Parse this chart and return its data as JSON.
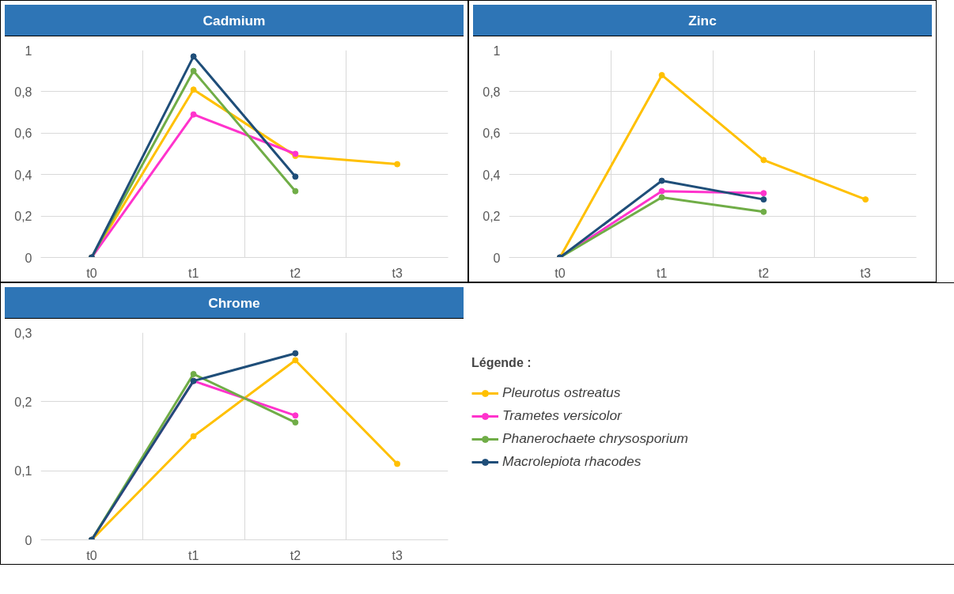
{
  "chart_data": [
    {
      "type": "line",
      "title": "Cadmium",
      "categories": [
        "t0",
        "t1",
        "t2",
        "t3"
      ],
      "ylim": [
        0,
        1
      ],
      "yticks": [
        0,
        {
          "value": 0.2,
          "label": "0,2"
        },
        {
          "value": 0.4,
          "label": "0,4"
        },
        {
          "value": 0.6,
          "label": "0,6"
        },
        {
          "value": 0.8,
          "label": "0,8"
        },
        1
      ],
      "grid": true,
      "marker": "circle",
      "line_style": "solid",
      "series": [
        {
          "color": "#ffc000",
          "values": [
            0,
            0.81,
            0.49,
            0.45
          ]
        },
        {
          "color": "#ff33cc",
          "values": [
            0,
            0.69,
            0.5,
            null
          ]
        },
        {
          "color": "#70ad47",
          "values": [
            0,
            0.9,
            0.32,
            null
          ]
        },
        {
          "color": "#1f4e79",
          "values": [
            0,
            0.97,
            0.39,
            null
          ]
        }
      ]
    },
    {
      "type": "line",
      "title": "Zinc",
      "categories": [
        "t0",
        "t1",
        "t2",
        "t3"
      ],
      "ylim": [
        0,
        1
      ],
      "yticks": [
        0,
        {
          "value": 0.2,
          "label": "0,2"
        },
        {
          "value": 0.4,
          "label": "0,4"
        },
        {
          "value": 0.6,
          "label": "0,6"
        },
        {
          "value": 0.8,
          "label": "0,8"
        },
        1
      ],
      "grid": true,
      "marker": "circle",
      "line_style": "solid",
      "series": [
        {
          "color": "#ffc000",
          "values": [
            0,
            0.88,
            0.47,
            0.28
          ]
        },
        {
          "color": "#ff33cc",
          "values": [
            0,
            0.32,
            0.31,
            null
          ]
        },
        {
          "color": "#70ad47",
          "values": [
            0,
            0.29,
            0.22,
            null
          ]
        },
        {
          "color": "#1f4e79",
          "values": [
            0,
            0.37,
            0.28,
            null
          ]
        }
      ]
    },
    {
      "type": "line",
      "title": "Chrome",
      "categories": [
        "t0",
        "t1",
        "t2",
        "t3"
      ],
      "ylim": [
        0,
        0.3
      ],
      "yticks": [
        0,
        {
          "value": 0.1,
          "label": "0,1"
        },
        {
          "value": 0.2,
          "label": "0,2"
        },
        {
          "value": 0.3,
          "label": "0,3"
        }
      ],
      "grid": true,
      "marker": "circle",
      "line_style": "solid",
      "legend": "right",
      "legend_title": "Légende :",
      "series": [
        {
          "name": "Pleurotus ostreatus",
          "color": "#ffc000",
          "values": [
            0,
            0.15,
            0.26,
            0.11
          ]
        },
        {
          "name": "Trametes versicolor",
          "color": "#ff33cc",
          "values": [
            0,
            0.23,
            0.18,
            null
          ]
        },
        {
          "name": "Phanerochaete chrysosporium",
          "color": "#70ad47",
          "values": [
            0,
            0.24,
            0.17,
            null
          ]
        },
        {
          "name": "Macrolepiota rhacodes",
          "color": "#1f4e79",
          "values": [
            0,
            0.23,
            0.27,
            null
          ]
        }
      ]
    }
  ]
}
